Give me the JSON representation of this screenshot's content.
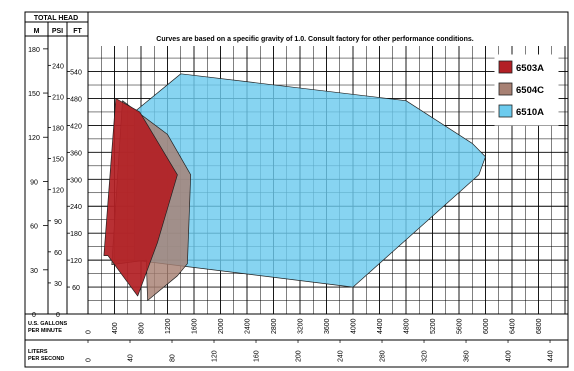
{
  "chart_data": {
    "type": "area",
    "note": "Curves are based on a specific gravity of 1.0. Consult factory for other performance conditions.",
    "head_header": "TOTAL HEAD",
    "head_units": [
      "M",
      "PSI",
      "FT"
    ],
    "scale_m": [
      "180",
      "150",
      "120",
      "90",
      "60",
      "30",
      "0"
    ],
    "scale_psi": [
      "240",
      "210",
      "180",
      "150",
      "120",
      "90",
      "60",
      "30",
      "0"
    ],
    "scale_ft": [
      "540",
      "480",
      "420",
      "360",
      "300",
      "240",
      "180",
      "120",
      "60"
    ],
    "gpm_label": [
      "U.S. GALLONS",
      "PER MINUTE"
    ],
    "gpm_ticks": [
      "0",
      "400",
      "800",
      "1200",
      "1600",
      "2000",
      "2400",
      "2800",
      "3200",
      "3600",
      "4000",
      "4400",
      "4800",
      "5200",
      "5600",
      "6000",
      "6400",
      "6800"
    ],
    "lps_label": [
      "LITERS",
      "PER SECOND"
    ],
    "lps_ticks": [
      "0",
      "40",
      "80",
      "120",
      "160",
      "200",
      "240",
      "280",
      "320",
      "360",
      "400",
      "440"
    ],
    "x_unit": "U.S. gpm",
    "y_unit": "ft",
    "xlim": [
      0,
      7200
    ],
    "ylim": [
      0,
      600
    ],
    "series": [
      {
        "name": "6510A",
        "color": "#6ccbee",
        "points": [
          [
            700,
            450
          ],
          [
            1400,
            535
          ],
          [
            4800,
            475
          ],
          [
            5800,
            380
          ],
          [
            6000,
            350
          ],
          [
            5900,
            310
          ],
          [
            4000,
            60
          ],
          [
            700,
            120
          ]
        ]
      },
      {
        "name": "6504C",
        "color": "#a78073",
        "points": [
          [
            360,
            110
          ],
          [
            520,
            475
          ],
          [
            1200,
            400
          ],
          [
            1550,
            310
          ],
          [
            1500,
            112
          ],
          [
            1350,
            85
          ],
          [
            900,
            30
          ],
          [
            880,
            120
          ]
        ]
      },
      {
        "name": "6503A",
        "color": "#b32025",
        "points": [
          [
            240,
            130
          ],
          [
            420,
            480
          ],
          [
            780,
            450
          ],
          [
            1350,
            310
          ],
          [
            1050,
            160
          ],
          [
            800,
            60
          ],
          [
            750,
            40
          ],
          [
            550,
            80
          ],
          [
            300,
            130
          ]
        ]
      }
    ]
  }
}
